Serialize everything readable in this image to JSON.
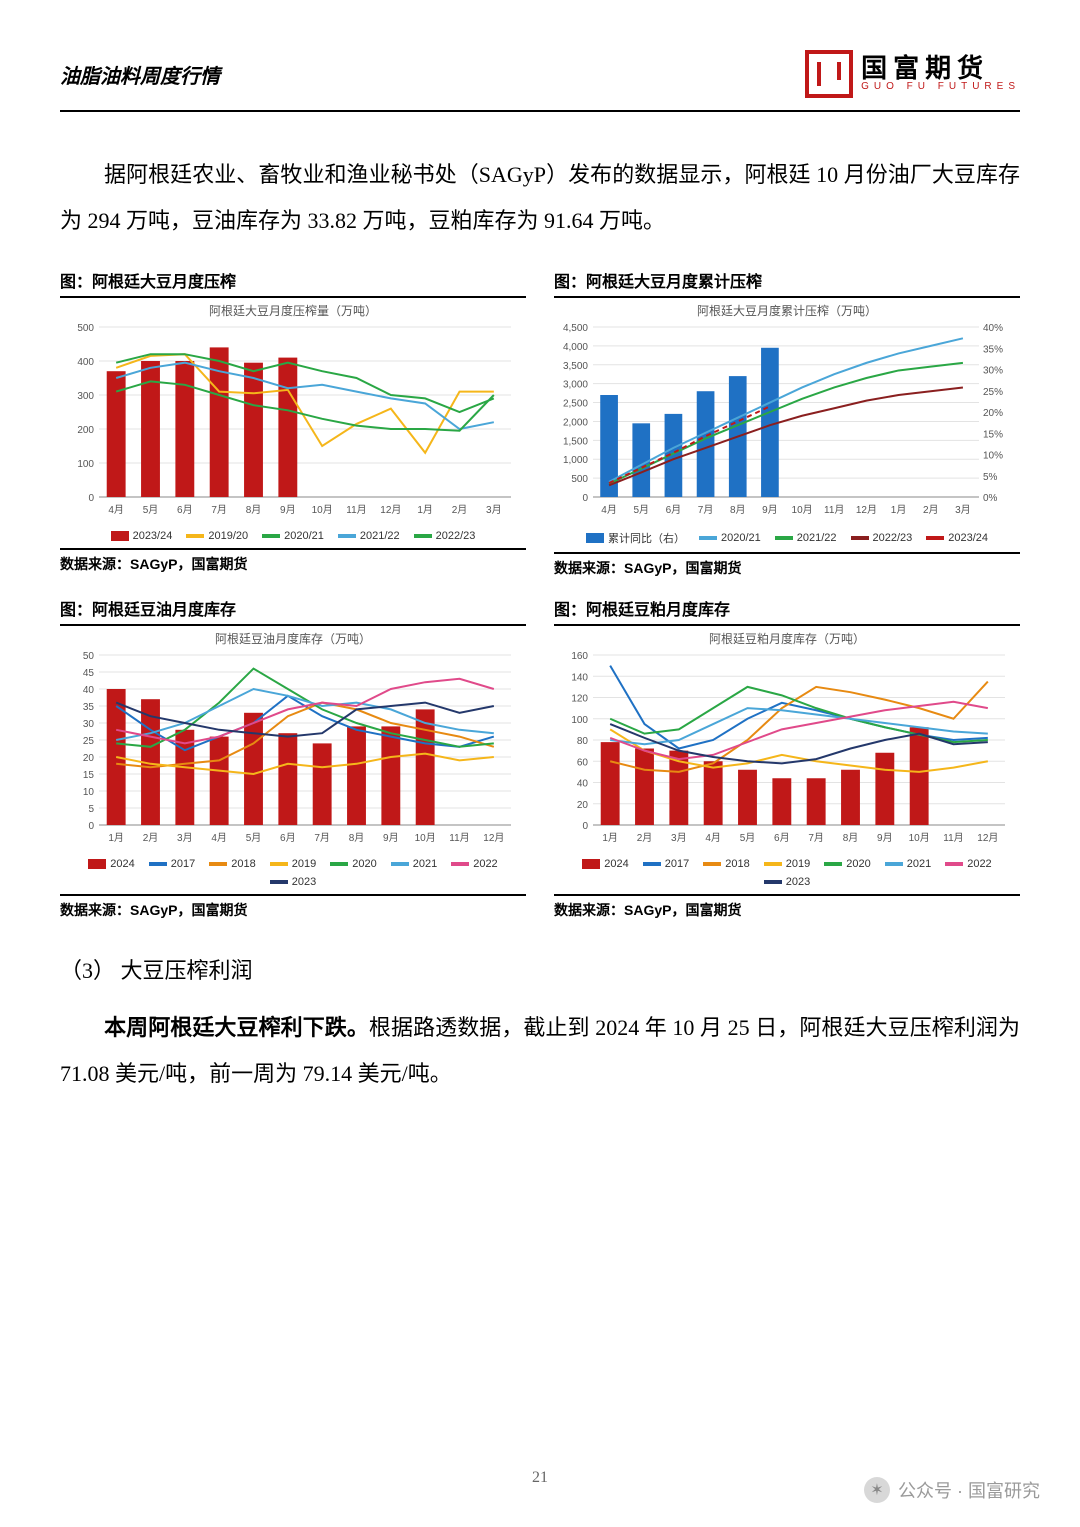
{
  "header": {
    "doc_title": "油脂油料周度行情",
    "logo_cn": "国富期货",
    "logo_en": "GUO FU FUTURES"
  },
  "para1": "据阿根廷农业、畜牧业和渔业秘书处（SAGyP）发布的数据显示，阿根廷 10 月份油厂大豆库存为 294 万吨，豆油库存为 33.82 万吨，豆粕库存为 91.64 万吨。",
  "charts": {
    "c1": {
      "title": "图：阿根廷大豆月度压榨",
      "subtitle": "阿根廷大豆月度压榨量（万吨）",
      "type": "bar+line",
      "categories": [
        "4月",
        "5月",
        "6月",
        "7月",
        "8月",
        "9月",
        "10月",
        "11月",
        "12月",
        "1月",
        "2月",
        "3月"
      ],
      "bar": {
        "label": "2023/24",
        "color": "#c01818",
        "values": [
          370,
          400,
          400,
          440,
          395,
          410,
          null,
          null,
          null,
          null,
          null,
          null
        ]
      },
      "lines": [
        {
          "label": "2019/20",
          "color": "#f5b61a",
          "values": [
            380,
            415,
            420,
            310,
            305,
            315,
            150,
            215,
            260,
            130,
            310,
            310
          ]
        },
        {
          "label": "2020/21",
          "color": "#2aa745",
          "values": [
            395,
            420,
            420,
            400,
            370,
            395,
            370,
            350,
            300,
            290,
            250,
            290
          ]
        },
        {
          "label": "2021/22",
          "color": "#4aa6d8",
          "values": [
            350,
            380,
            395,
            370,
            350,
            320,
            330,
            310,
            290,
            275,
            200,
            220
          ]
        },
        {
          "label": "2022/23",
          "color": "#2aa745",
          "values": [
            310,
            340,
            330,
            300,
            270,
            255,
            230,
            210,
            200,
            200,
            195,
            300
          ]
        }
      ],
      "ylim": [
        0,
        500
      ],
      "ystep": 100,
      "grid_color": "#e3e3e3",
      "bg": "#ffffff",
      "source": "数据来源：SAGyP，国富期货"
    },
    "c2": {
      "title": "图：阿根廷大豆月度累计压榨",
      "subtitle": "阿根廷大豆月度累计压榨（万吨）",
      "type": "bar+line+right",
      "categories": [
        "4月",
        "5月",
        "6月",
        "7月",
        "8月",
        "9月",
        "10月",
        "11月",
        "12月",
        "1月",
        "2月",
        "3月"
      ],
      "bar": {
        "label": "累计同比（右）",
        "color": "#1f71c4",
        "values": [
          2700,
          1950,
          2200,
          2800,
          3200,
          3950,
          null,
          null,
          null,
          null,
          null,
          null
        ]
      },
      "lines": [
        {
          "label": "2020/21",
          "color": "#4aa6d8",
          "values": [
            400,
            850,
            1300,
            1700,
            2100,
            2500,
            2900,
            3250,
            3550,
            3800,
            4000,
            4200
          ]
        },
        {
          "label": "2021/22",
          "color": "#2aa745",
          "values": [
            350,
            750,
            1150,
            1550,
            1900,
            2250,
            2600,
            2900,
            3150,
            3350,
            3450,
            3550
          ]
        },
        {
          "label": "2022/23",
          "color": "#8a1f1f",
          "values": [
            310,
            650,
            1000,
            1300,
            1600,
            1900,
            2150,
            2350,
            2550,
            2700,
            2800,
            2900
          ]
        },
        {
          "label": "2023/24",
          "color": "#c01818",
          "values": [
            370,
            770,
            1170,
            1610,
            2000,
            2400,
            null,
            null,
            null,
            null,
            null,
            null
          ],
          "dash": true
        }
      ],
      "ylim": [
        0,
        4500
      ],
      "ystep": 500,
      "right_ylim": [
        0,
        40
      ],
      "right_ystep": 5,
      "right_suffix": "%",
      "grid_color": "#e3e3e3",
      "bg": "#ffffff",
      "source": "数据来源：SAGyP，国富期货"
    },
    "c3": {
      "title": "图：阿根廷豆油月度库存",
      "subtitle": "阿根廷豆油月度库存（万吨）",
      "type": "bar+line",
      "categories": [
        "1月",
        "2月",
        "3月",
        "4月",
        "5月",
        "6月",
        "7月",
        "8月",
        "9月",
        "10月",
        "11月",
        "12月"
      ],
      "bar": {
        "label": "2024",
        "color": "#c01818",
        "values": [
          40,
          37,
          28,
          26,
          33,
          27,
          24,
          29,
          29,
          34,
          null,
          null
        ]
      },
      "lines": [
        {
          "label": "2017",
          "color": "#1f71c4",
          "values": [
            35,
            28,
            22,
            26,
            30,
            38,
            32,
            28,
            26,
            24,
            23,
            26
          ]
        },
        {
          "label": "2018",
          "color": "#e78a12",
          "values": [
            18,
            17,
            18,
            19,
            24,
            32,
            36,
            34,
            30,
            28,
            26,
            23
          ]
        },
        {
          "label": "2019",
          "color": "#f5b61a",
          "values": [
            20,
            18,
            17,
            16,
            15,
            18,
            17,
            18,
            20,
            21,
            19,
            20
          ]
        },
        {
          "label": "2020",
          "color": "#2aa745",
          "values": [
            24,
            23,
            28,
            36,
            46,
            40,
            34,
            30,
            27,
            25,
            23,
            24
          ]
        },
        {
          "label": "2021",
          "color": "#4aa6d8",
          "values": [
            25,
            27,
            30,
            35,
            40,
            38,
            35,
            36,
            34,
            30,
            28,
            27
          ]
        },
        {
          "label": "2022",
          "color": "#e04a8a",
          "values": [
            28,
            26,
            24,
            26,
            30,
            34,
            36,
            35,
            40,
            42,
            43,
            40
          ]
        },
        {
          "label": "2023",
          "color": "#24386b",
          "values": [
            36,
            32,
            30,
            28,
            27,
            26,
            27,
            34,
            35,
            36,
            33,
            35
          ]
        }
      ],
      "ylim": [
        0,
        50
      ],
      "ystep": 5,
      "grid_color": "#e3e3e3",
      "bg": "#ffffff",
      "source": "数据来源：SAGyP，国富期货"
    },
    "c4": {
      "title": "图：阿根廷豆粕月度库存",
      "subtitle": "阿根廷豆粕月度库存（万吨）",
      "type": "bar+line",
      "categories": [
        "1月",
        "2月",
        "3月",
        "4月",
        "5月",
        "6月",
        "7月",
        "8月",
        "9月",
        "10月",
        "11月",
        "12月"
      ],
      "bar": {
        "label": "2024",
        "color": "#c01818",
        "values": [
          78,
          72,
          70,
          60,
          52,
          44,
          44,
          52,
          68,
          92,
          null,
          null
        ]
      },
      "lines": [
        {
          "label": "2017",
          "color": "#1f71c4",
          "values": [
            150,
            95,
            72,
            80,
            100,
            115,
            108,
            100,
            92,
            85,
            80,
            82
          ]
        },
        {
          "label": "2018",
          "color": "#e78a12",
          "values": [
            60,
            52,
            50,
            58,
            80,
            110,
            130,
            125,
            118,
            110,
            100,
            135
          ]
        },
        {
          "label": "2019",
          "color": "#f5b61a",
          "values": [
            90,
            70,
            60,
            54,
            58,
            66,
            60,
            56,
            52,
            50,
            54,
            60
          ]
        },
        {
          "label": "2020",
          "color": "#2aa745",
          "values": [
            100,
            86,
            90,
            110,
            130,
            122,
            110,
            100,
            92,
            85,
            78,
            80
          ]
        },
        {
          "label": "2021",
          "color": "#4aa6d8",
          "values": [
            80,
            76,
            80,
            95,
            110,
            108,
            104,
            100,
            96,
            92,
            88,
            86
          ]
        },
        {
          "label": "2022",
          "color": "#e04a8a",
          "values": [
            82,
            70,
            62,
            66,
            78,
            90,
            96,
            102,
            108,
            112,
            116,
            110
          ]
        },
        {
          "label": "2023",
          "color": "#24386b",
          "values": [
            95,
            82,
            70,
            64,
            60,
            58,
            62,
            72,
            80,
            86,
            76,
            78
          ]
        }
      ],
      "ylim": [
        0,
        160
      ],
      "ystep": 20,
      "grid_color": "#e3e3e3",
      "bg": "#ffffff",
      "source": "数据来源：SAGyP，国富期货"
    }
  },
  "section_label": "（3）  大豆压榨利润",
  "para2_bold": "本周阿根廷大豆榨利下跌。",
  "para2_rest": "根据路透数据，截止到 2024 年 10 月 25 日，阿根廷大豆压榨利润为 71.08 美元/吨，前一周为 79.14 美元/吨。",
  "page_number": "21",
  "footer_tag": "公众号 · 国富研究"
}
